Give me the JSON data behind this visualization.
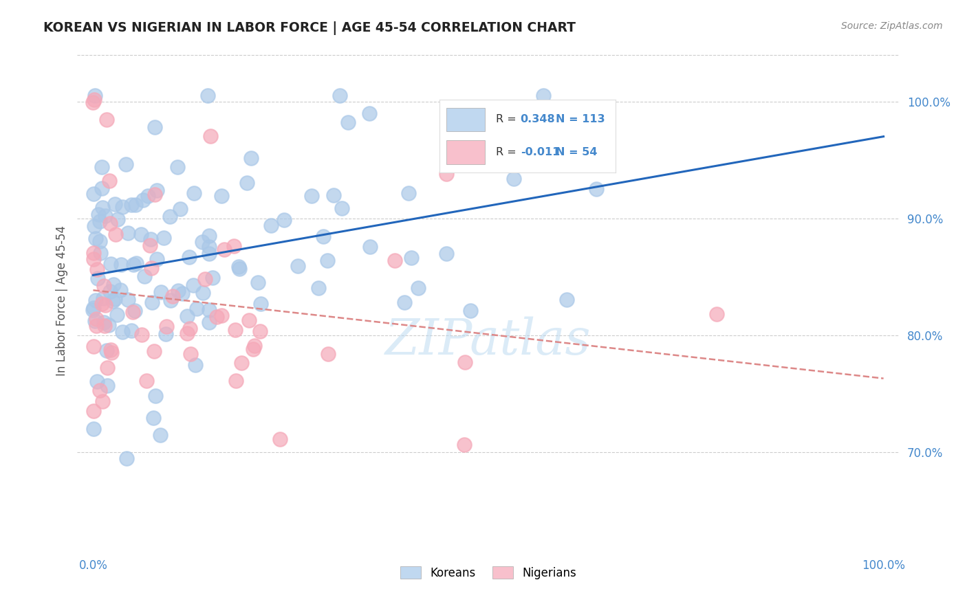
{
  "title": "KOREAN VS NIGERIAN IN LABOR FORCE | AGE 45-54 CORRELATION CHART",
  "source": "Source: ZipAtlas.com",
  "ylabel": "In Labor Force | Age 45-54",
  "xlim": [
    -0.02,
    1.02
  ],
  "ylim": [
    0.615,
    1.045
  ],
  "x_tick_positions": [
    0.0,
    1.0
  ],
  "x_tick_labels": [
    "0.0%",
    "100.0%"
  ],
  "y_tick_values": [
    0.7,
    0.8,
    0.9,
    1.0
  ],
  "y_tick_labels": [
    "70.0%",
    "80.0%",
    "90.0%",
    "100.0%"
  ],
  "korean_R": "0.348",
  "korean_N": "113",
  "nigerian_R": "-0.011",
  "nigerian_N": "54",
  "korean_dot_color": "#aac8e8",
  "nigerian_dot_color": "#f5a8b8",
  "korean_line_color": "#2266bb",
  "nigerian_line_color": "#dd8888",
  "korean_legend_color": "#c0d8f0",
  "nigerian_legend_color": "#f8c0cc",
  "tick_label_color": "#4488cc",
  "watermark_color": "#b8d8f0",
  "background_color": "#ffffff",
  "grid_color": "#cccccc",
  "title_color": "#222222",
  "source_color": "#888888",
  "ylabel_color": "#555555"
}
